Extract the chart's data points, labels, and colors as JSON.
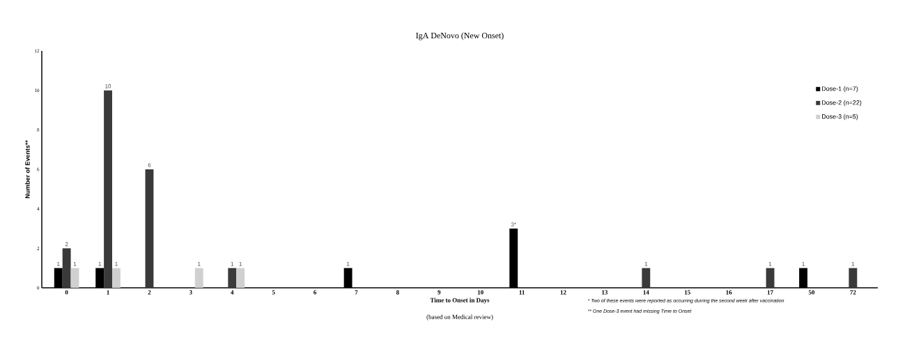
{
  "chart_data": {
    "type": "bar",
    "title": "IgA DeNovo (New Onset)",
    "xlabel": "Time to Onset in Days",
    "ylabel": "Number of Events**",
    "categories": [
      "0",
      "1",
      "2",
      "3",
      "4",
      "5",
      "6",
      "7",
      "8",
      "9",
      "10",
      "11",
      "12",
      "13",
      "14",
      "15",
      "16",
      "17",
      "50",
      "72"
    ],
    "series": [
      {
        "name": "Dose-1 (n=7)",
        "color": "#000000",
        "values": [
          1,
          1,
          0,
          0,
          0,
          0,
          0,
          1,
          0,
          0,
          0,
          3,
          0,
          0,
          0,
          0,
          0,
          0,
          1,
          0
        ],
        "value_labels": [
          "1",
          "1",
          null,
          null,
          null,
          null,
          null,
          "1",
          null,
          null,
          null,
          "3*",
          null,
          null,
          null,
          null,
          null,
          null,
          "1",
          null
        ]
      },
      {
        "name": "Dose-2 (n=22)",
        "color": "#3a3a3a",
        "values": [
          2,
          10,
          6,
          0,
          1,
          0,
          0,
          0,
          0,
          0,
          0,
          0,
          0,
          0,
          1,
          0,
          0,
          1,
          0,
          1
        ],
        "value_labels": [
          "2",
          "10",
          "6",
          null,
          "1",
          null,
          null,
          null,
          null,
          null,
          null,
          null,
          null,
          null,
          "1",
          null,
          null,
          "1",
          null,
          "1"
        ]
      },
      {
        "name": "Dose-3 (n=5)",
        "color": "#d0d0d0",
        "values": [
          1,
          1,
          0,
          1,
          1,
          0,
          0,
          0,
          0,
          0,
          0,
          0,
          0,
          0,
          0,
          0,
          0,
          0,
          0,
          0
        ],
        "value_labels": [
          "1",
          "1",
          null,
          "1",
          "1",
          null,
          null,
          null,
          null,
          null,
          null,
          null,
          null,
          null,
          null,
          null,
          null,
          null,
          null,
          null
        ]
      }
    ],
    "ylim": [
      0,
      12
    ],
    "yticks": [
      0,
      2,
      4,
      6,
      8,
      10,
      12
    ],
    "grid": false,
    "legend": "right",
    "annotations": [
      "(based on Medical review)",
      "* Two of these events were reported as occurring durring the second week after vaccination",
      "** One Dose-3 event had missing Time to Onset"
    ]
  }
}
